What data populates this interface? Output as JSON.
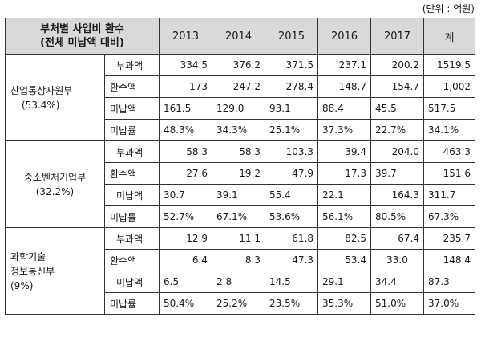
{
  "unit_note": "(단위 : 억원)",
  "header": {
    "title_line1": "부처별 사업비 환수",
    "title_line2": "(전체 미납액 대비)",
    "columns": [
      "2013",
      "2014",
      "2015",
      "2016",
      "2017",
      "계"
    ]
  },
  "groups": [
    {
      "name_lines": [
        "산업통상자원부",
        "(53.4%)"
      ],
      "rows": [
        {
          "label": "부과액",
          "values": [
            "334.5",
            "376.2",
            "371.5",
            "237.1",
            "200.2",
            "1519.5"
          ]
        },
        {
          "label": "환수액",
          "values": [
            "173",
            "247.2",
            "278.4",
            "148.7",
            "154.7",
            "1,002"
          ]
        },
        {
          "label": "미납액",
          "values": [
            "161.5",
            "129.0",
            "93.1",
            "88.4",
            "45.5",
            "517.5"
          ]
        },
        {
          "label": "미납률",
          "values": [
            "48.3%",
            "34.3%",
            "25.1%",
            "37.3%",
            "22.7%",
            "34.1%"
          ]
        }
      ]
    },
    {
      "name_lines": [
        "중소벤처기업부",
        "(32.2%)"
      ],
      "rows": [
        {
          "label": "부과액",
          "values": [
            "58.3",
            "58.3",
            "103.3",
            "39.4",
            "204.0",
            "463.3"
          ]
        },
        {
          "label": "환수액",
          "values": [
            "27.6",
            "19.2",
            "47.9",
            "17.3",
            "39.7",
            "151.6"
          ]
        },
        {
          "label": "미납액",
          "values": [
            "30.7",
            "39.1",
            "55.4",
            "22.1",
            "164.3",
            "311.7"
          ]
        },
        {
          "label": "미납률",
          "values": [
            "52.7%",
            "67.1%",
            "53.6%",
            "56.1%",
            "80.5%",
            "67.3%"
          ]
        }
      ]
    },
    {
      "name_lines": [
        "과학기술",
        "정보통신부",
        "(9%)"
      ],
      "rows": [
        {
          "label": "부과액",
          "values": [
            "12.9",
            "11.1",
            "61.8",
            "82.5",
            "67.4",
            "235.7"
          ]
        },
        {
          "label": "환수액",
          "values": [
            "6.4",
            "8.3",
            "47.3",
            "53.4",
            "33.0",
            "148.4"
          ]
        },
        {
          "label": "미납액",
          "values": [
            "6.5",
            "2.8",
            "14.5",
            "29.1",
            "34.4",
            "87.3"
          ]
        },
        {
          "label": "미납률",
          "values": [
            "50.4%",
            "25.2%",
            "23.5%",
            "35.3%",
            "51.0%",
            "37.0%"
          ]
        }
      ]
    }
  ]
}
